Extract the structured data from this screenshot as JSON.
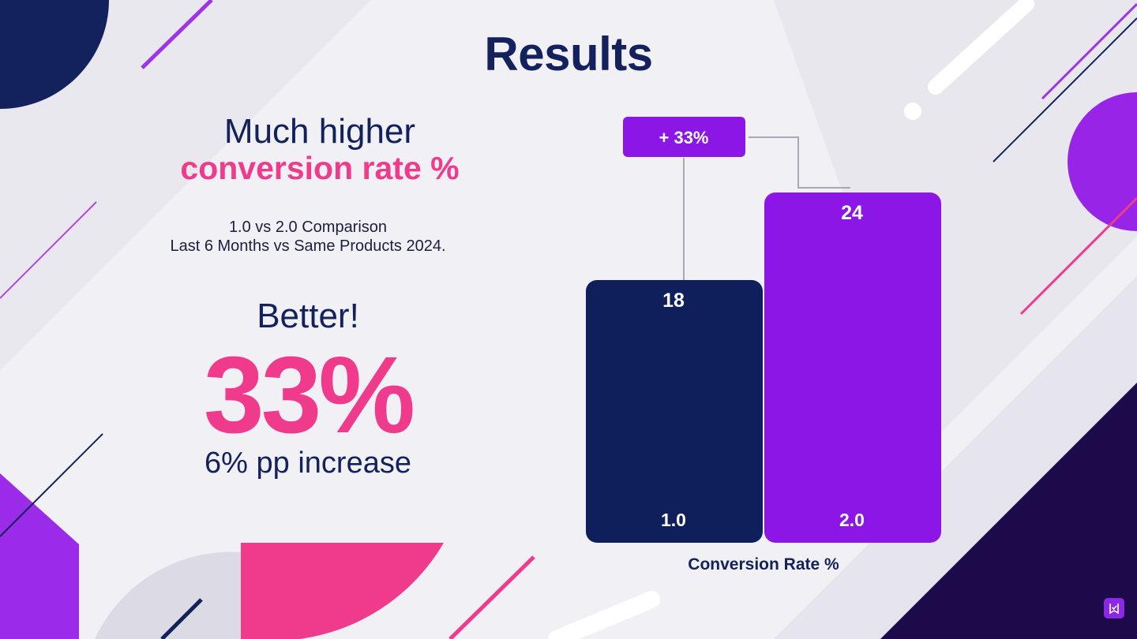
{
  "slide": {
    "title": "Results",
    "headline_line1": "Much higher",
    "headline_line2": "conversion rate %",
    "subtitle_line1": "1.0 vs 2.0 Comparison",
    "subtitle_line2": "Last 6 Months vs Same Products 2024.",
    "better_label": "Better!",
    "big_stat": "33%",
    "increase_label": "6% pp increase"
  },
  "chart_data": {
    "type": "bar",
    "title": "",
    "xlabel": "Conversion Rate %",
    "ylabel": "",
    "categories": [
      "1.0",
      "2.0"
    ],
    "values": [
      18,
      24
    ],
    "value_labels": [
      "18",
      "24"
    ],
    "ylim": [
      0,
      30
    ],
    "grid": false,
    "legend": "none",
    "annotation": "+ 33%",
    "colors": [
      "#0f1f5c",
      "#8b16e6"
    ]
  },
  "colors": {
    "navy": "#13225c",
    "pink": "#f03a8c",
    "purple": "#8b16e6"
  },
  "icons": {
    "corner": "bookmark-check-icon"
  }
}
